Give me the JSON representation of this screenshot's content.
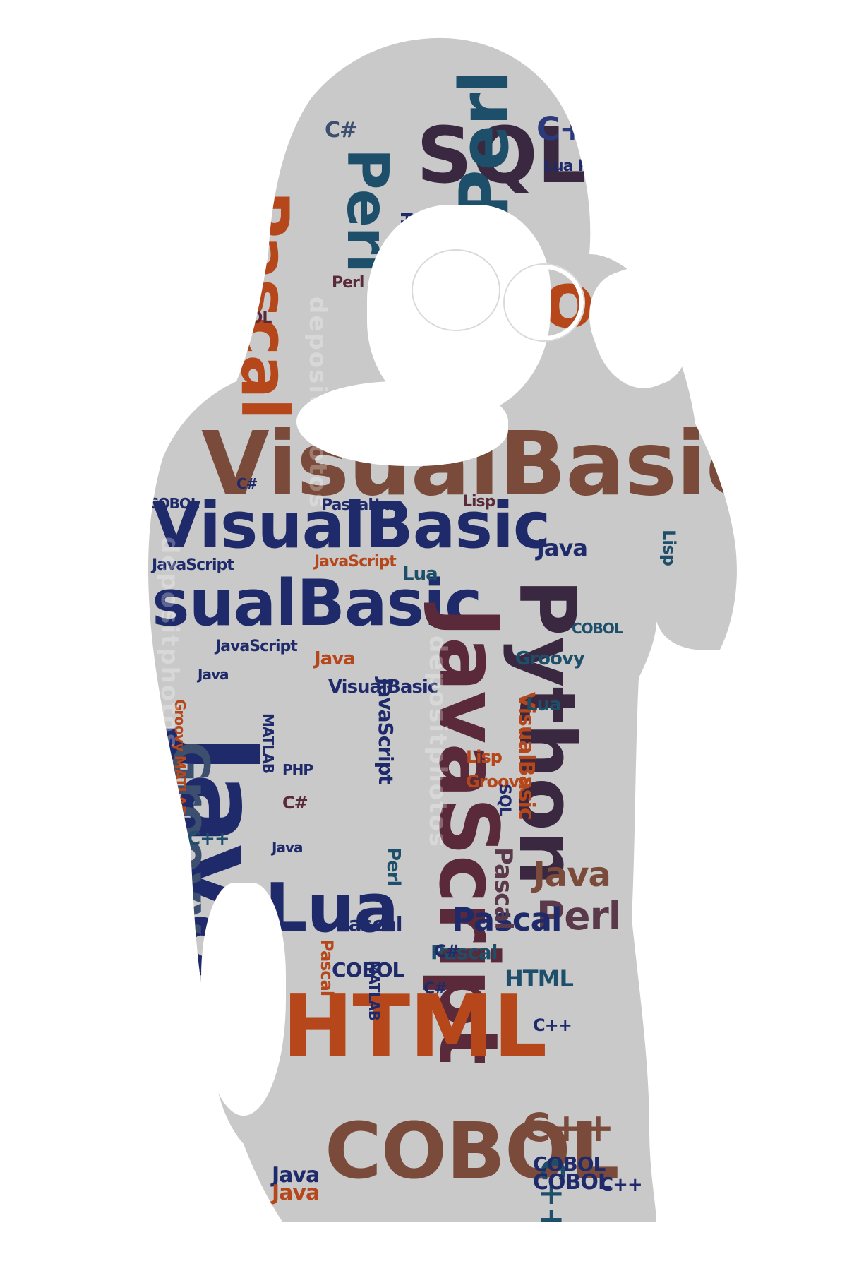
{
  "image": {
    "description_free": true,
    "colors": {
      "background": "#ffffff",
      "silhouette": "#c9c9c9",
      "navy": "#1f2a6b",
      "orange": "#b5471b",
      "maroon": "#5a2a3a",
      "brown": "#7a4a3a",
      "teal": "#1d4f6b",
      "slate": "#3c4f6e"
    }
  },
  "watermark": {
    "text": "depositphotos"
  },
  "words": [
    {
      "text": "SQL",
      "color": "#3a2740"
    },
    {
      "text": "Perl",
      "color": "#1d4f6b"
    },
    {
      "text": "C++",
      "color": "#2b3a7a"
    },
    {
      "text": "Pascal",
      "color": "#b5471b"
    },
    {
      "text": "Perl",
      "color": "#1d4f6b"
    },
    {
      "text": "Groovy",
      "color": "#b5471b"
    },
    {
      "text": "VisualBasic",
      "color": "#7a4a3a"
    },
    {
      "text": "VisualBasic",
      "color": "#1f2a6b"
    },
    {
      "text": "sualBasic",
      "color": "#1f2a6b"
    },
    {
      "text": "JavaScript",
      "color": "#5a2a3a"
    },
    {
      "text": "Java",
      "color": "#1f2a6b"
    },
    {
      "text": "Python",
      "color": "#3a2740"
    },
    {
      "text": "Groovy",
      "color": "#3c4f6e"
    },
    {
      "text": "HTML",
      "color": "#b5471b"
    },
    {
      "text": "COBOL",
      "color": "#7a4a3a"
    },
    {
      "text": "Lua",
      "color": "#1f2a6b"
    },
    {
      "text": "C++",
      "color": "#7a4a3a"
    },
    {
      "text": "C++",
      "color": "#1d4f6b"
    },
    {
      "text": "Perl",
      "color": "#5a3a4a"
    },
    {
      "text": "Pascal",
      "color": "#1f2a6b"
    },
    {
      "text": "Java",
      "color": "#7a4a3a"
    },
    {
      "text": "HTML",
      "color": "#1d4f6b"
    },
    {
      "text": "COBOL",
      "color": "#1f2a6b"
    },
    {
      "text": "COBOL",
      "color": "#1f2a6b"
    },
    {
      "text": "Pascal",
      "color": "#1d4f6b"
    },
    {
      "text": "Pascal",
      "color": "#1f2a6b"
    },
    {
      "text": "Java",
      "color": "#1f2a6b"
    },
    {
      "text": "Java",
      "color": "#b5471b"
    },
    {
      "text": "Java",
      "color": "#1f2a6b"
    },
    {
      "text": "VisualBasic",
      "color": "#1f2a6b"
    },
    {
      "text": "JavaScript",
      "color": "#1f2a6b"
    },
    {
      "text": "JavaScript",
      "color": "#b5471b"
    },
    {
      "text": "JavaScript",
      "color": "#1f2a6b"
    },
    {
      "text": "JavaScript",
      "color": "#1f2a6b"
    },
    {
      "text": "VisualBasic",
      "color": "#b5471b"
    },
    {
      "text": "Pascal",
      "color": "#1f2a6b"
    },
    {
      "text": "Lua",
      "color": "#1f2a6b"
    },
    {
      "text": "Lua",
      "color": "#1d4f6b"
    },
    {
      "text": "COBOL",
      "color": "#1f2a6b"
    },
    {
      "text": "C#",
      "color": "#1f2a6b"
    },
    {
      "text": "Lisp",
      "color": "#5a2a3a"
    },
    {
      "text": "COBOL",
      "color": "#5a2a3a"
    },
    {
      "text": "Groovy",
      "color": "#1d4f6b"
    },
    {
      "text": "HTML",
      "color": "#1f2a6b"
    },
    {
      "text": "Lua PHP",
      "color": "#1f2a6b"
    },
    {
      "text": "C#",
      "color": "#3c4f6e"
    },
    {
      "text": "Perl",
      "color": "#5a2a3a"
    },
    {
      "text": "Groovy",
      "color": "#b5471b"
    },
    {
      "text": "SQL",
      "color": "#1f2a6b"
    },
    {
      "text": "Pascal",
      "color": "#5a3a4a"
    },
    {
      "text": "Lisp",
      "color": "#b5471b"
    },
    {
      "text": "Lua",
      "color": "#1d4f6b"
    },
    {
      "text": "PHP",
      "color": "#1f2a6b"
    },
    {
      "text": "MATLAB",
      "color": "#1f2a6b"
    },
    {
      "text": "Groovy MATLAB",
      "color": "#b5471b"
    },
    {
      "text": "Perl",
      "color": "#1d4f6b"
    },
    {
      "text": "C#",
      "color": "#5a2a3a"
    },
    {
      "text": "C#",
      "color": "#1f2a6b"
    },
    {
      "text": "C++",
      "color": "#1d4f6b"
    },
    {
      "text": "C++",
      "color": "#1f2a6b"
    },
    {
      "text": "C#",
      "color": "#1f2a6b"
    },
    {
      "text": "Java",
      "color": "#1f2a6b"
    },
    {
      "text": "Java",
      "color": "#b5471b"
    },
    {
      "text": "Java",
      "color": "#1f2a6b"
    },
    {
      "text": "Pascal",
      "color": "#b5471b"
    },
    {
      "text": "MATLAB",
      "color": "#1f2a6b"
    },
    {
      "text": "COBOL",
      "color": "#1f2a6b"
    },
    {
      "text": "C++",
      "color": "#1f2a6b"
    },
    {
      "text": "Lisp",
      "color": "#1d4f6b"
    },
    {
      "text": "COBOL",
      "color": "#1d4f6b"
    }
  ]
}
